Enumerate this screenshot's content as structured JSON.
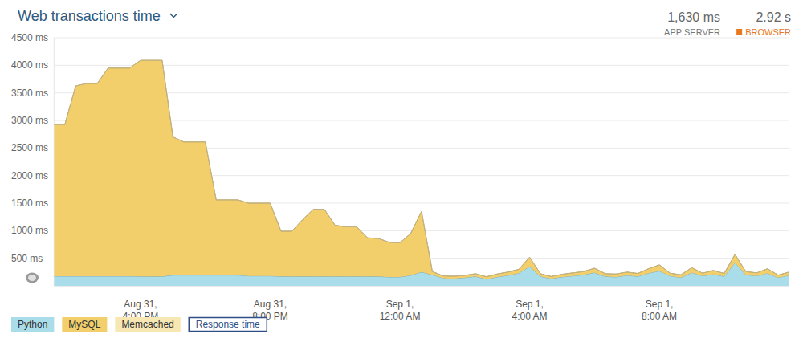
{
  "chart_data": {
    "type": "area",
    "title": "Web transactions time",
    "stacked": true,
    "grid": true,
    "categories": [
      null,
      null,
      null,
      null,
      null,
      null,
      null,
      null,
      "Aug 31,\n4:00 PM",
      null,
      null,
      null,
      null,
      null,
      null,
      null,
      null,
      null,
      null,
      null,
      "Aug 31,\n8:00 PM",
      null,
      null,
      null,
      null,
      null,
      null,
      null,
      null,
      null,
      null,
      null,
      "Sep 1,\n12:00 AM",
      null,
      null,
      null,
      null,
      null,
      null,
      null,
      null,
      null,
      null,
      null,
      "Sep 1,\n4:00 AM",
      null,
      null,
      null,
      null,
      null,
      null,
      null,
      null,
      null,
      null,
      null,
      "Sep 1,\n8:00 AM",
      null,
      null,
      null,
      null,
      null,
      null,
      null,
      null,
      null,
      null,
      null,
      null
    ],
    "series": [
      {
        "name": "Python",
        "color": "#a9dde9",
        "values": [
          175,
          175,
          175,
          175,
          175,
          175,
          175,
          175,
          170,
          170,
          170,
          195,
          195,
          195,
          195,
          195,
          195,
          195,
          180,
          180,
          180,
          170,
          170,
          170,
          170,
          170,
          170,
          170,
          170,
          170,
          170,
          160,
          160,
          190,
          250,
          200,
          140,
          130,
          150,
          170,
          120,
          160,
          190,
          230,
          350,
          170,
          130,
          160,
          180,
          200,
          240,
          170,
          160,
          190,
          170,
          230,
          270,
          180,
          150,
          240,
          180,
          210,
          170,
          420,
          200,
          180,
          230,
          150,
          190
        ]
      },
      {
        "name": "MySQL",
        "color": "#f2cf6b",
        "values": [
          2750,
          2750,
          3450,
          3495,
          3495,
          3775,
          3775,
          3775,
          3920,
          3920,
          3920,
          2505,
          2415,
          2415,
          2415,
          1365,
          1365,
          1365,
          1320,
          1320,
          1320,
          820,
          820,
          1030,
          1220,
          1220,
          930,
          900,
          900,
          700,
          690,
          630,
          620,
          760,
          1100,
          60,
          40,
          45,
          40,
          50,
          45,
          55,
          60,
          70,
          170,
          50,
          40,
          50,
          55,
          60,
          80,
          50,
          55,
          60,
          55,
          80,
          110,
          50,
          50,
          90,
          50,
          70,
          55,
          150,
          60,
          55,
          80,
          45,
          60
        ]
      },
      {
        "name": "Memcached",
        "color": "#f6e7b3",
        "values": [
          0,
          0,
          0,
          0,
          0,
          0,
          0,
          0,
          0,
          0,
          0,
          0,
          0,
          0,
          0,
          0,
          0,
          0,
          0,
          0,
          0,
          0,
          0,
          0,
          0,
          0,
          0,
          0,
          0,
          0,
          0,
          0,
          0,
          0,
          0,
          0,
          0,
          0,
          0,
          0,
          0,
          0,
          0,
          0,
          0,
          0,
          0,
          0,
          0,
          0,
          0,
          0,
          0,
          0,
          0,
          0,
          0,
          0,
          0,
          0,
          0,
          0,
          0,
          0,
          0,
          0,
          0,
          0,
          0
        ]
      }
    ],
    "ylim": [
      0,
      4500
    ],
    "yticks": [
      {
        "value": 500,
        "label": "500 ms"
      },
      {
        "value": 1000,
        "label": "1000 ms"
      },
      {
        "value": 1500,
        "label": "1500 ms"
      },
      {
        "value": 2000,
        "label": "2000 ms"
      },
      {
        "value": 2500,
        "label": "2500 ms"
      },
      {
        "value": 3000,
        "label": "3000 ms"
      },
      {
        "value": 3500,
        "label": "3500 ms"
      },
      {
        "value": 4000,
        "label": "4000 ms"
      },
      {
        "value": 4500,
        "label": "4500 ms"
      }
    ],
    "annotations": [
      "1,630 ms",
      "APP SERVER",
      "2.92 s",
      "BROWSER",
      "Response time"
    ]
  }
}
